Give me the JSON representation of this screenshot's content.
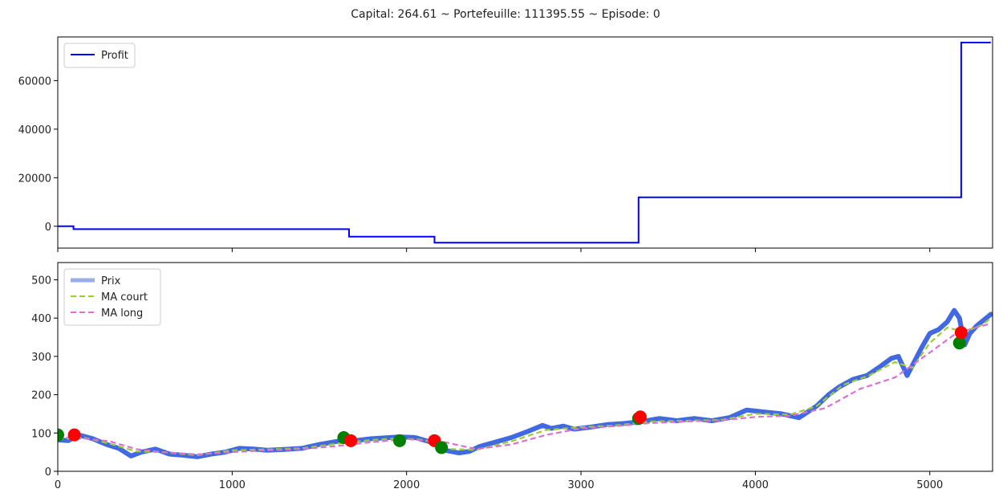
{
  "title": "Capital: 264.61 ~ Portefeuille: 111395.55 ~ Episode: 0",
  "chart_data": [
    {
      "type": "line",
      "name": "profit",
      "xlim": [
        0,
        5360
      ],
      "ylim": [
        -9000,
        78000
      ],
      "yticks": [
        0,
        20000,
        40000,
        60000
      ],
      "ytick_labels": [
        "0",
        "20000",
        "40000",
        "60000"
      ],
      "xticks": [
        0,
        1000,
        2000,
        3000,
        4000,
        5000
      ],
      "legend": {
        "location": "upper-left",
        "entries": [
          "Profit"
        ]
      },
      "series": [
        {
          "name": "Profit",
          "color": "#0000ff",
          "step": true,
          "x": [
            0,
            90,
            1670,
            2160,
            3330,
            5180,
            5350
          ],
          "y": [
            0,
            -1200,
            -4300,
            -6800,
            11900,
            75700,
            75700
          ]
        }
      ]
    },
    {
      "type": "line",
      "name": "price",
      "xlim": [
        0,
        5360
      ],
      "ylim": [
        0,
        545
      ],
      "yticks": [
        0,
        100,
        200,
        300,
        400,
        500
      ],
      "ytick_labels": [
        "0",
        "100",
        "200",
        "300",
        "400",
        "500"
      ],
      "xticks": [
        0,
        1000,
        2000,
        3000,
        4000,
        5000
      ],
      "xtick_labels": [
        "0",
        "1000",
        "2000",
        "3000",
        "4000",
        "5000"
      ],
      "legend": {
        "location": "upper-left",
        "entries": [
          "Prix",
          "MA court",
          "MA long"
        ]
      },
      "series": [
        {
          "name": "Prix",
          "color": "#4169e1",
          "x": [
            0,
            60,
            120,
            200,
            280,
            350,
            420,
            480,
            560,
            640,
            720,
            800,
            880,
            960,
            1040,
            1120,
            1200,
            1300,
            1400,
            1500,
            1600,
            1700,
            1800,
            1900,
            1960,
            2050,
            2150,
            2220,
            2300,
            2360,
            2420,
            2500,
            2600,
            2700,
            2780,
            2830,
            2900,
            2960,
            3050,
            3150,
            3250,
            3350,
            3450,
            3550,
            3650,
            3750,
            3850,
            3950,
            4050,
            4150,
            4250,
            4350,
            4420,
            4480,
            4560,
            4640,
            4720,
            4780,
            4820,
            4870,
            4950,
            5000,
            5050,
            5100,
            5140,
            5170,
            5200,
            5230,
            5270,
            5310,
            5350
          ],
          "y": [
            82,
            80,
            95,
            85,
            70,
            60,
            40,
            50,
            58,
            45,
            42,
            38,
            45,
            50,
            60,
            58,
            55,
            57,
            60,
            70,
            78,
            80,
            85,
            88,
            90,
            88,
            75,
            55,
            48,
            52,
            65,
            75,
            88,
            105,
            120,
            112,
            118,
            110,
            115,
            122,
            125,
            130,
            138,
            132,
            138,
            132,
            140,
            160,
            155,
            150,
            140,
            170,
            200,
            220,
            240,
            250,
            275,
            295,
            300,
            250,
            320,
            360,
            370,
            390,
            420,
            400,
            330,
            360,
            380,
            395,
            410
          ]
        },
        {
          "name": "MA court",
          "color": "#9acd32",
          "x": [
            0,
            150,
            300,
            450,
            600,
            800,
            1000,
            1200,
            1400,
            1600,
            1800,
            1950,
            2100,
            2250,
            2400,
            2600,
            2800,
            3000,
            3200,
            3400,
            3600,
            3800,
            4000,
            4200,
            4350,
            4500,
            4650,
            4800,
            4900,
            5000,
            5100,
            5200,
            5300,
            5350
          ],
          "y": [
            84,
            88,
            72,
            52,
            50,
            42,
            55,
            57,
            60,
            72,
            82,
            86,
            82,
            58,
            56,
            78,
            108,
            115,
            120,
            130,
            132,
            134,
            150,
            148,
            170,
            225,
            250,
            285,
            270,
            335,
            375,
            365,
            382,
            400
          ]
        },
        {
          "name": "MA long",
          "color": "#da70d6",
          "x": [
            0,
            150,
            300,
            450,
            600,
            800,
            1000,
            1200,
            1400,
            1600,
            1800,
            2000,
            2200,
            2400,
            2600,
            2800,
            3000,
            3200,
            3400,
            3600,
            3800,
            4000,
            4200,
            4400,
            4600,
            4800,
            5000,
            5150,
            5300,
            5350
          ],
          "y": [
            90,
            86,
            78,
            58,
            50,
            44,
            50,
            55,
            58,
            66,
            76,
            84,
            78,
            58,
            70,
            95,
            112,
            118,
            126,
            130,
            133,
            142,
            145,
            165,
            215,
            245,
            310,
            360,
            380,
            385
          ]
        }
      ],
      "markers": [
        {
          "kind": "buy",
          "color": "#008000",
          "x": 0,
          "y": 95
        },
        {
          "kind": "sell",
          "color": "#ff0000",
          "x": 95,
          "y": 95
        },
        {
          "kind": "buy",
          "color": "#008000",
          "x": 1640,
          "y": 88
        },
        {
          "kind": "sell",
          "color": "#ff0000",
          "x": 1680,
          "y": 80
        },
        {
          "kind": "buy",
          "color": "#008000",
          "x": 1960,
          "y": 80
        },
        {
          "kind": "sell",
          "color": "#ff0000",
          "x": 2160,
          "y": 80
        },
        {
          "kind": "buy",
          "color": "#008000",
          "x": 2200,
          "y": 62
        },
        {
          "kind": "buy",
          "color": "#008000",
          "x": 3330,
          "y": 138
        },
        {
          "kind": "sell",
          "color": "#ff0000",
          "x": 3340,
          "y": 142
        },
        {
          "kind": "buy",
          "color": "#008000",
          "x": 5170,
          "y": 335
        },
        {
          "kind": "sell",
          "color": "#ff0000",
          "x": 5180,
          "y": 362
        }
      ]
    }
  ]
}
